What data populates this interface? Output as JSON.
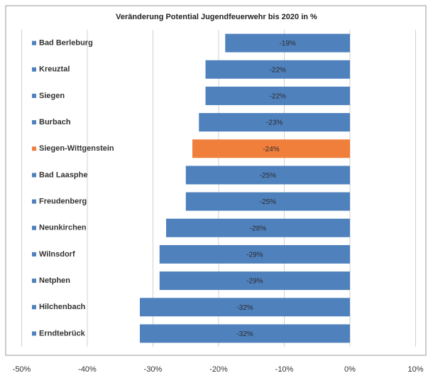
{
  "chart_data": {
    "type": "barh",
    "title": "Veränderung Potential Jugendfeuerwehr bis 2020 in %",
    "categories": [
      "Bad Berleburg",
      "Kreuztal",
      "Siegen",
      "Burbach",
      "Siegen-Wittgenstein",
      "Bad Laasphe",
      "Freudenberg",
      "Neunkirchen",
      "Wilnsdorf",
      "Netphen",
      "Hilchenbach",
      "Erndtebrück"
    ],
    "values": [
      -19,
      -22,
      -22,
      -23,
      -24,
      -25,
      -25,
      -28,
      -29,
      -29,
      -32,
      -32
    ],
    "value_labels": [
      "-19%",
      "-22%",
      "-22%",
      "-23%",
      "-24%",
      "-25%",
      "-25%",
      "-28%",
      "-29%",
      "-29%",
      "-32%",
      "-32%"
    ],
    "colors": [
      "#4f81bd",
      "#4f81bd",
      "#4f81bd",
      "#4f81bd",
      "#f07f3c",
      "#4f81bd",
      "#4f81bd",
      "#4f81bd",
      "#4f81bd",
      "#4f81bd",
      "#4f81bd",
      "#4f81bd"
    ],
    "xlim": [
      -50,
      10
    ],
    "xticks": [
      {
        "value": -50,
        "label": "-50%"
      },
      {
        "value": -40,
        "label": "-40%"
      },
      {
        "value": -30,
        "label": "-30%"
      },
      {
        "value": -20,
        "label": "-20%"
      },
      {
        "value": -10,
        "label": "-10%"
      },
      {
        "value": 0,
        "label": "0%"
      },
      {
        "value": 10,
        "label": "10%"
      }
    ],
    "grid": true
  }
}
